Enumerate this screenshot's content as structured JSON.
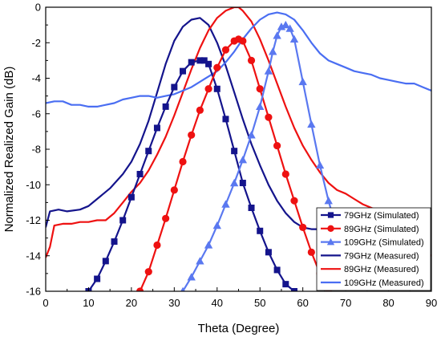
{
  "chart_data": {
    "type": "line",
    "xlabel": "Theta (Degree)",
    "ylabel": "Normalized Realized Gain (dB)",
    "xlim": [
      0,
      90
    ],
    "ylim": [
      -16,
      0
    ],
    "x_ticks": [
      0,
      10,
      20,
      30,
      40,
      50,
      60,
      70,
      80,
      90
    ],
    "y_ticks": [
      0,
      -2,
      -4,
      -6,
      -8,
      -10,
      -12,
      -14,
      -16
    ],
    "grid": false,
    "legend_position": "bottom-right",
    "series": [
      {
        "name": "79GHz (Simulated)",
        "color": "#14148c",
        "marker": "square",
        "x": [
          10,
          12,
          14,
          16,
          18,
          20,
          22,
          24,
          26,
          28,
          30,
          32,
          34,
          36,
          37,
          38,
          40,
          42,
          44,
          46,
          48,
          50,
          52,
          54,
          56,
          58
        ],
        "y": [
          -16,
          -15.3,
          -14.3,
          -13.2,
          -12,
          -10.7,
          -9.4,
          -8.1,
          -6.8,
          -5.6,
          -4.5,
          -3.6,
          -3.1,
          -3.0,
          -3.0,
          -3.2,
          -4.6,
          -6.3,
          -8.1,
          -9.9,
          -11.3,
          -12.6,
          -13.8,
          -14.8,
          -15.6,
          -16
        ]
      },
      {
        "name": "89GHz (Simulated)",
        "color": "#ee1111",
        "marker": "circle",
        "x": [
          22,
          24,
          26,
          28,
          30,
          32,
          34,
          36,
          38,
          40,
          42,
          44,
          45,
          46,
          48,
          50,
          52,
          54,
          56,
          58,
          60,
          62,
          64,
          66
        ],
        "y": [
          -16,
          -14.9,
          -13.4,
          -11.9,
          -10.3,
          -8.7,
          -7.2,
          -5.8,
          -4.6,
          -3.4,
          -2.4,
          -1.9,
          -1.8,
          -1.9,
          -3.0,
          -4.6,
          -6.2,
          -7.8,
          -9.4,
          -10.9,
          -12.4,
          -13.8,
          -15.0,
          -16
        ]
      },
      {
        "name": "109GHz (Simulated)",
        "color": "#5a78f0",
        "marker": "triangle",
        "x": [
          32,
          34,
          36,
          38,
          40,
          42,
          44,
          46,
          48,
          50,
          52,
          53,
          54,
          55,
          56,
          57,
          58,
          60,
          62,
          64,
          66,
          68,
          70,
          72
        ],
        "y": [
          -16,
          -15.2,
          -14.3,
          -13.4,
          -12.3,
          -11.1,
          -9.9,
          -8.6,
          -7.2,
          -5.6,
          -3.6,
          -2.5,
          -1.6,
          -1.1,
          -1.0,
          -1.2,
          -1.8,
          -4.2,
          -6.6,
          -8.9,
          -10.9,
          -12.6,
          -14.0,
          -15.2
        ]
      },
      {
        "name": "79GHz (Measured)",
        "color": "#14148c",
        "marker": "none",
        "x": [
          0,
          1,
          3,
          5,
          8,
          10,
          12,
          15,
          18,
          20,
          22,
          24,
          26,
          28,
          30,
          32,
          34,
          36,
          38,
          40,
          42,
          44,
          46,
          48,
          50,
          52,
          54,
          56,
          58,
          60,
          62,
          64
        ],
        "y": [
          -12.4,
          -11.5,
          -11.4,
          -11.5,
          -11.4,
          -11.2,
          -10.8,
          -10.2,
          -9.4,
          -8.7,
          -7.7,
          -6.4,
          -4.8,
          -3.2,
          -1.9,
          -1.1,
          -0.7,
          -0.6,
          -1.0,
          -2.0,
          -3.3,
          -4.8,
          -6.3,
          -7.7,
          -8.9,
          -10.0,
          -10.9,
          -11.6,
          -12.1,
          -12.4,
          -12.5,
          -12.5
        ]
      },
      {
        "name": "89GHz (Measured)",
        "color": "#ee1111",
        "marker": "none",
        "x": [
          0,
          1,
          2,
          4,
          6,
          8,
          10,
          12,
          14,
          16,
          18,
          20,
          22,
          24,
          26,
          28,
          30,
          32,
          34,
          36,
          38,
          40,
          42,
          44,
          45,
          46,
          48,
          50,
          52,
          54,
          56,
          58,
          60,
          62,
          64,
          66,
          68,
          70,
          72,
          74,
          76,
          78,
          80,
          82,
          84,
          86,
          88,
          90
        ],
        "y": [
          -14.1,
          -13.5,
          -12.3,
          -12.2,
          -12.2,
          -12.1,
          -12.1,
          -12.0,
          -12.0,
          -11.6,
          -11.0,
          -10.4,
          -9.9,
          -9.2,
          -8.3,
          -7.3,
          -6.1,
          -4.8,
          -3.5,
          -2.3,
          -1.3,
          -0.6,
          -0.2,
          0,
          0,
          -0.2,
          -0.8,
          -1.8,
          -3.0,
          -4.3,
          -5.6,
          -6.8,
          -7.8,
          -8.6,
          -9.3,
          -9.9,
          -10.3,
          -10.5,
          -10.8,
          -11.1,
          -11.3,
          -11.5,
          -11.8,
          -12.3,
          -12.5,
          -13.1,
          -13.7,
          -14.0
        ]
      },
      {
        "name": "109GHz (Measured)",
        "color": "#4a6ef2",
        "marker": "none",
        "x": [
          0,
          2,
          4,
          6,
          8,
          10,
          12,
          14,
          16,
          18,
          20,
          22,
          24,
          26,
          28,
          30,
          32,
          34,
          36,
          38,
          40,
          42,
          44,
          46,
          48,
          50,
          52,
          54,
          56,
          58,
          60,
          62,
          64,
          66,
          68,
          70,
          72,
          74,
          76,
          78,
          80,
          82,
          84,
          86,
          88,
          90
        ],
        "y": [
          -5.4,
          -5.3,
          -5.3,
          -5.5,
          -5.5,
          -5.6,
          -5.6,
          -5.5,
          -5.4,
          -5.2,
          -5.1,
          -5.0,
          -5.0,
          -5.1,
          -5.0,
          -4.9,
          -4.7,
          -4.5,
          -4.2,
          -3.9,
          -3.6,
          -3.1,
          -2.5,
          -1.8,
          -1.2,
          -0.7,
          -0.4,
          -0.3,
          -0.4,
          -0.7,
          -1.3,
          -2.0,
          -2.6,
          -3.0,
          -3.2,
          -3.4,
          -3.6,
          -3.7,
          -3.8,
          -4.0,
          -4.1,
          -4.2,
          -4.3,
          -4.3,
          -4.5,
          -4.7
        ]
      }
    ]
  }
}
